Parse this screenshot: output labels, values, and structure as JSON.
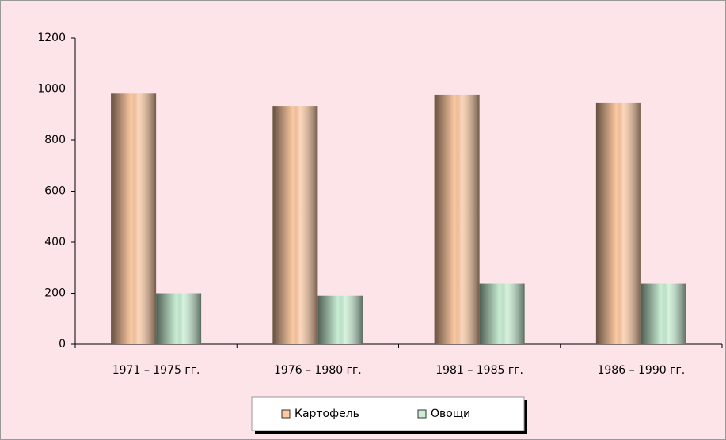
{
  "chart_data": {
    "type": "bar",
    "categories": [
      "1971 – 1975 гг.",
      "1976 – 1980 гг.",
      "1981 – 1985 гг.",
      "1986 – 1990 гг."
    ],
    "series": [
      {
        "name": "Картофель",
        "color": "#fcc9a2",
        "values": [
          982,
          933,
          977,
          946
        ]
      },
      {
        "name": "Овощи",
        "color": "#c9eed4",
        "values": [
          200,
          190,
          237,
          237
        ]
      }
    ],
    "ylim": [
      0,
      1200
    ],
    "yticks": [
      0,
      200,
      400,
      600,
      800,
      1000,
      1200
    ],
    "legend": "bottom"
  }
}
